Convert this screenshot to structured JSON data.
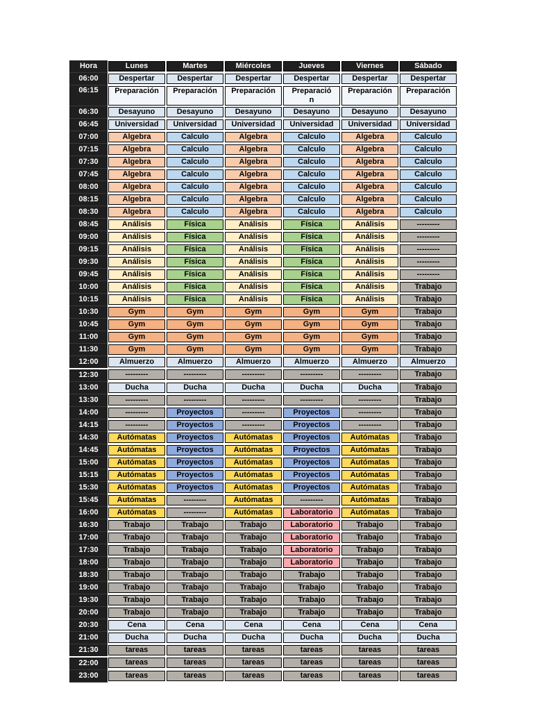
{
  "table": {
    "columns": [
      "Hora",
      "Lunes",
      "Martes",
      "Miércoles",
      "Jueves",
      "Viernes",
      "Sábado"
    ],
    "colors": {
      "header_bg": "#1f1f1f",
      "header_text": "#ffffff",
      "cell_border": "#000000",
      "cell_text": "#000000",
      "activity_colors": {
        "Despertar": "#dce6f1",
        "Preparación": "#f2f6fa",
        "Desayuno": "#dce6f1",
        "Universidad": "#dce6f1",
        "Algebra": "#f8cbad",
        "Calculo": "#bdd7ee",
        "Análisis": "#ffeec6",
        "Física": "#a9d18e",
        "Gym": "#f4b183",
        "Almuerzo": "#dce6f1",
        "Ducha": "#dce6f1",
        "Cena": "#dce6f1",
        "Proyectos": "#8faadc",
        "Autómatas": "#ffd95a",
        "Laboratorio": "#f8a9ad",
        "Trabajo": "#b3afa8",
        "tareas": "#b3afa8",
        "---------": "#b3afa8"
      }
    },
    "wrap_cell": {
      "time": "06:15",
      "col": 3,
      "break_at": 10
    },
    "time_white_separator_after": [
      "12:00",
      "21:30"
    ],
    "rows": [
      {
        "time": "06:00",
        "cells": [
          "Despertar",
          "Despertar",
          "Despertar",
          "Despertar",
          "Despertar",
          "Despertar"
        ]
      },
      {
        "time": "06:15",
        "cells": [
          "Preparación",
          "Preparación",
          "Preparación",
          "Preparación",
          "Preparación",
          "Preparación"
        ]
      },
      {
        "time": "06:30",
        "cells": [
          "Desayuno",
          "Desayuno",
          "Desayuno",
          "Desayuno",
          "Desayuno",
          "Desayuno"
        ]
      },
      {
        "time": "06:45",
        "cells": [
          "Universidad",
          "Universidad",
          "Universidad",
          "Universidad",
          "Universidad",
          "Universidad"
        ]
      },
      {
        "time": "07:00",
        "cells": [
          "Algebra",
          "Calculo",
          "Algebra",
          "Calculo",
          "Algebra",
          "Calculo"
        ]
      },
      {
        "time": "07:15",
        "cells": [
          "Algebra",
          "Calculo",
          "Algebra",
          "Calculo",
          "Algebra",
          "Calculo"
        ]
      },
      {
        "time": "07:30",
        "cells": [
          "Algebra",
          "Calculo",
          "Algebra",
          "Calculo",
          "Algebra",
          "Calculo"
        ]
      },
      {
        "time": "07:45",
        "cells": [
          "Algebra",
          "Calculo",
          "Algebra",
          "Calculo",
          "Algebra",
          "Calculo"
        ]
      },
      {
        "time": "08:00",
        "cells": [
          "Algebra",
          "Calculo",
          "Algebra",
          "Calculo",
          "Algebra",
          "Calculo"
        ]
      },
      {
        "time": "08:15",
        "cells": [
          "Algebra",
          "Calculo",
          "Algebra",
          "Calculo",
          "Algebra",
          "Calculo"
        ]
      },
      {
        "time": "08:30",
        "cells": [
          "Algebra",
          "Calculo",
          "Algebra",
          "Calculo",
          "Algebra",
          "Calculo"
        ]
      },
      {
        "time": "08:45",
        "cells": [
          "Análisis",
          "Física",
          "Análisis",
          "Física",
          "Análisis",
          "---------"
        ]
      },
      {
        "time": "09:00",
        "cells": [
          "Análisis",
          "Física",
          "Análisis",
          "Física",
          "Análisis",
          "---------"
        ]
      },
      {
        "time": "09:15",
        "cells": [
          "Análisis",
          "Física",
          "Análisis",
          "Física",
          "Análisis",
          "---------"
        ]
      },
      {
        "time": "09:30",
        "cells": [
          "Análisis",
          "Física",
          "Análisis",
          "Física",
          "Análisis",
          "---------"
        ]
      },
      {
        "time": "09:45",
        "cells": [
          "Análisis",
          "Física",
          "Análisis",
          "Física",
          "Análisis",
          "---------"
        ]
      },
      {
        "time": "10:00",
        "cells": [
          "Análisis",
          "Física",
          "Análisis",
          "Física",
          "Análisis",
          "Trabajo"
        ]
      },
      {
        "time": "10:15",
        "cells": [
          "Análisis",
          "Física",
          "Análisis",
          "Física",
          "Análisis",
          "Trabajo"
        ]
      },
      {
        "time": "10:30",
        "cells": [
          "Gym",
          "Gym",
          "Gym",
          "Gym",
          "Gym",
          "Trabajo"
        ]
      },
      {
        "time": "10:45",
        "cells": [
          "Gym",
          "Gym",
          "Gym",
          "Gym",
          "Gym",
          "Trabajo"
        ]
      },
      {
        "time": "11:00",
        "cells": [
          "Gym",
          "Gym",
          "Gym",
          "Gym",
          "Gym",
          "Trabajo"
        ]
      },
      {
        "time": "11:30",
        "cells": [
          "Gym",
          "Gym",
          "Gym",
          "Gym",
          "Gym",
          "Trabajo"
        ]
      },
      {
        "time": "12:00",
        "cells": [
          "Almuerzo",
          "Almuerzo",
          "Almuerzo",
          "Almuerzo",
          "Almuerzo",
          "Almuerzo"
        ]
      },
      {
        "time": "12:30",
        "cells": [
          "---------",
          "---------",
          "---------",
          "---------",
          "---------",
          "Trabajo"
        ]
      },
      {
        "time": "13:00",
        "cells": [
          "Ducha",
          "Ducha",
          "Ducha",
          "Ducha",
          "Ducha",
          "Trabajo"
        ]
      },
      {
        "time": "13:30",
        "cells": [
          "---------",
          "---------",
          "---------",
          "---------",
          "---------",
          "Trabajo"
        ]
      },
      {
        "time": "14:00",
        "cells": [
          "---------",
          "Proyectos",
          "---------",
          "Proyectos",
          "---------",
          "Trabajo"
        ]
      },
      {
        "time": "14:15",
        "cells": [
          "---------",
          "Proyectos",
          "---------",
          "Proyectos",
          "---------",
          "Trabajo"
        ]
      },
      {
        "time": "14:30",
        "cells": [
          "Autómatas",
          "Proyectos",
          "Autómatas",
          "Proyectos",
          "Autómatas",
          "Trabajo"
        ]
      },
      {
        "time": "14:45",
        "cells": [
          "Autómatas",
          "Proyectos",
          "Autómatas",
          "Proyectos",
          "Autómatas",
          "Trabajo"
        ]
      },
      {
        "time": "15:00",
        "cells": [
          "Autómatas",
          "Proyectos",
          "Autómatas",
          "Proyectos",
          "Autómatas",
          "Trabajo"
        ]
      },
      {
        "time": "15:15",
        "cells": [
          "Autómatas",
          "Proyectos",
          "Autómatas",
          "Proyectos",
          "Autómatas",
          "Trabajo"
        ]
      },
      {
        "time": "15:30",
        "cells": [
          "Autómatas",
          "Proyectos",
          "Autómatas",
          "Proyectos",
          "Autómatas",
          "Trabajo"
        ]
      },
      {
        "time": "15:45",
        "cells": [
          "Autómatas",
          "---------",
          "Autómatas",
          "---------",
          "Autómatas",
          "Trabajo"
        ]
      },
      {
        "time": "16:00",
        "cells": [
          "Autómatas",
          "---------",
          "Autómatas",
          "Laboratorio",
          "Autómatas",
          "Trabajo"
        ]
      },
      {
        "time": "16:30",
        "cells": [
          "Trabajo",
          "Trabajo",
          "Trabajo",
          "Laboratorio",
          "Trabajo",
          "Trabajo"
        ]
      },
      {
        "time": "17:00",
        "cells": [
          "Trabajo",
          "Trabajo",
          "Trabajo",
          "Laboratorio",
          "Trabajo",
          "Trabajo"
        ]
      },
      {
        "time": "17:30",
        "cells": [
          "Trabajo",
          "Trabajo",
          "Trabajo",
          "Laboratorio",
          "Trabajo",
          "Trabajo"
        ]
      },
      {
        "time": "18:00",
        "cells": [
          "Trabajo",
          "Trabajo",
          "Trabajo",
          "Laboratorio",
          "Trabajo",
          "Trabajo"
        ]
      },
      {
        "time": "18:30",
        "cells": [
          "Trabajo",
          "Trabajo",
          "Trabajo",
          "Trabajo",
          "Trabajo",
          "Trabajo"
        ]
      },
      {
        "time": "19:00",
        "cells": [
          "Trabajo",
          "Trabajo",
          "Trabajo",
          "Trabajo",
          "Trabajo",
          "Trabajo"
        ]
      },
      {
        "time": "19:30",
        "cells": [
          "Trabajo",
          "Trabajo",
          "Trabajo",
          "Trabajo",
          "Trabajo",
          "Trabajo"
        ]
      },
      {
        "time": "20:00",
        "cells": [
          "Trabajo",
          "Trabajo",
          "Trabajo",
          "Trabajo",
          "Trabajo",
          "Trabajo"
        ]
      },
      {
        "time": "20:30",
        "cells": [
          "Cena",
          "Cena",
          "Cena",
          "Cena",
          "Cena",
          "Cena"
        ]
      },
      {
        "time": "21:00",
        "cells": [
          "Ducha",
          "Ducha",
          "Ducha",
          "Ducha",
          "Ducha",
          "Ducha"
        ]
      },
      {
        "time": "21:30",
        "cells": [
          "tareas",
          "tareas",
          "tareas",
          "tareas",
          "tareas",
          "tareas"
        ]
      },
      {
        "time": "22:00",
        "cells": [
          "tareas",
          "tareas",
          "tareas",
          "tareas",
          "tareas",
          "tareas"
        ]
      },
      {
        "time": "23:00",
        "cells": [
          "tareas",
          "tareas",
          "tareas",
          "tareas",
          "tareas",
          "tareas"
        ]
      }
    ]
  }
}
